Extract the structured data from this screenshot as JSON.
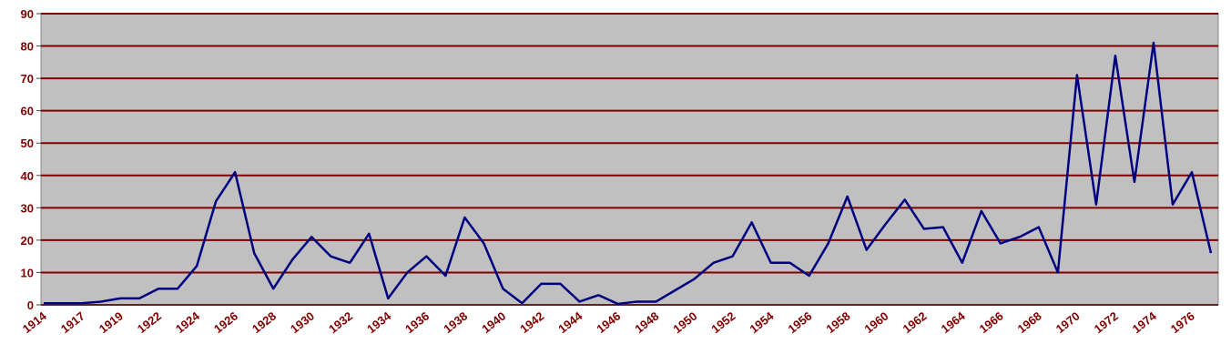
{
  "chart_data": {
    "type": "line",
    "categories": [
      "1914",
      null,
      "1917",
      null,
      "1919",
      null,
      "1922",
      null,
      "1924",
      null,
      "1926",
      null,
      "1928",
      null,
      "1930",
      null,
      "1932",
      null,
      "1934",
      null,
      "1936",
      null,
      "1938",
      null,
      "1940",
      null,
      "1942",
      null,
      "1944",
      null,
      "1946",
      null,
      "1948",
      null,
      "1950",
      null,
      "1952",
      null,
      "1954",
      null,
      "1956",
      null,
      "1958",
      null,
      "1960",
      null,
      "1962",
      null,
      "1964",
      null,
      "1966",
      null,
      "1968",
      null,
      "1970",
      null,
      "1972",
      null,
      "1974",
      null,
      "1976",
      null
    ],
    "series": [
      {
        "color": "#000080",
        "values": [
          0.5,
          0.5,
          0.5,
          1,
          2,
          2,
          5,
          5,
          12,
          32,
          41,
          16,
          5,
          14,
          21,
          15,
          13,
          22,
          2,
          10,
          15,
          9,
          27,
          19,
          5,
          0.5,
          6.5,
          6.5,
          1,
          3,
          0.3,
          1,
          1,
          4.5,
          8,
          13,
          15,
          25.5,
          13,
          13,
          9,
          19,
          33.5,
          17,
          25,
          32.5,
          23.5,
          24,
          13,
          29,
          19,
          21,
          24,
          10,
          71,
          31,
          77,
          38,
          81,
          31,
          41,
          16
        ]
      }
    ],
    "ylim": [
      0,
      90
    ],
    "yticks": [
      0,
      10,
      20,
      30,
      40,
      50,
      60,
      70,
      80,
      90
    ],
    "grid": true,
    "grid_color": "#800000",
    "plot_background": "#c0c0c0",
    "label_color": "#800000"
  }
}
